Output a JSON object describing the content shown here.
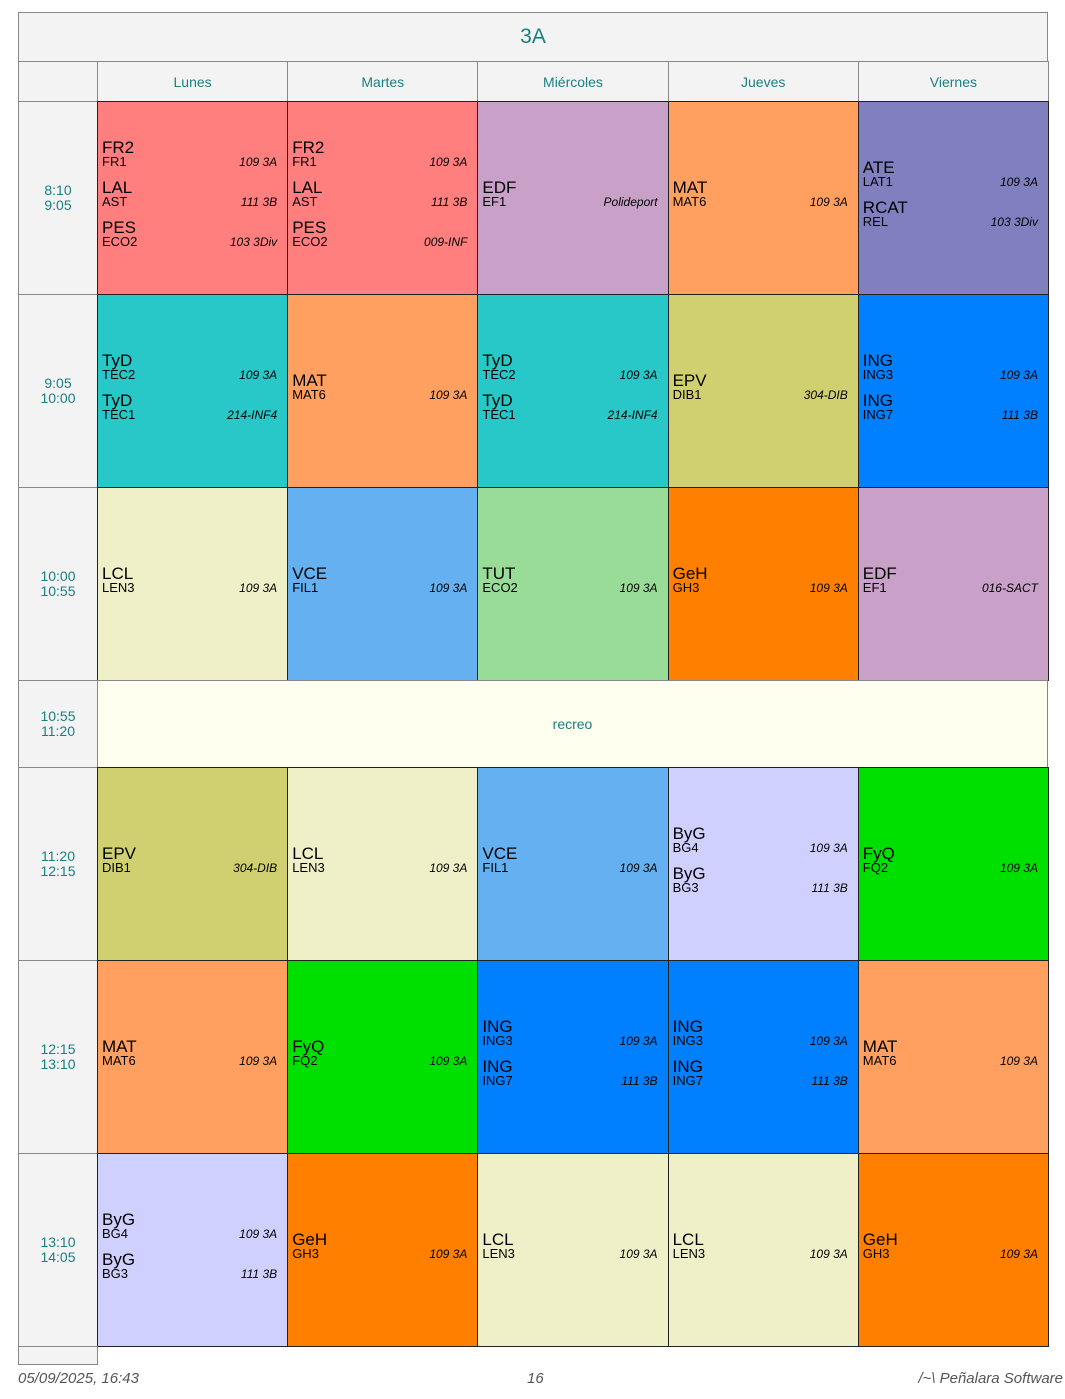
{
  "title": "3A",
  "days": [
    "Lunes",
    "Martes",
    "Miércoles",
    "Jueves",
    "Viernes"
  ],
  "rows": [
    {
      "time": [
        "8:10",
        "9:05"
      ],
      "cells": [
        {
          "color": "#ff7f7f",
          "entries": [
            {
              "subject": "FR2",
              "group": "FR1",
              "room": "109 3A"
            },
            {
              "subject": "LAL",
              "group": "AST",
              "room": "111 3B"
            },
            {
              "subject": "PES",
              "group": "ECO2",
              "room": "103 3Div"
            }
          ]
        },
        {
          "color": "#ff7f7f",
          "entries": [
            {
              "subject": "FR2",
              "group": "FR1",
              "room": "109 3A"
            },
            {
              "subject": "LAL",
              "group": "AST",
              "room": "111 3B"
            },
            {
              "subject": "PES",
              "group": "ECO2",
              "room": "009-INF"
            }
          ]
        },
        {
          "color": "#c8a0c8",
          "entries": [
            {
              "subject": "EDF",
              "group": "EF1",
              "room": "Polideport"
            }
          ]
        },
        {
          "color": "#ffa060",
          "entries": [
            {
              "subject": "MAT",
              "group": "MAT6",
              "room": "109 3A"
            }
          ]
        },
        {
          "color": "#8080c0",
          "entries": [
            {
              "subject": "ATE",
              "group": "LAT1",
              "room": "109 3A"
            },
            {
              "subject": "RCAT",
              "group": "REL",
              "room": "103 3Div"
            }
          ]
        }
      ]
    },
    {
      "time": [
        "9:05",
        "10:00"
      ],
      "cells": [
        {
          "color": "#28c8c8",
          "entries": [
            {
              "subject": "TyD",
              "group": "TEC2",
              "room": "109 3A"
            },
            {
              "subject": "TyD",
              "group": "TEC1",
              "room": "214-INF4"
            }
          ]
        },
        {
          "color": "#ffa060",
          "entries": [
            {
              "subject": "MAT",
              "group": "MAT6",
              "room": "109 3A"
            }
          ]
        },
        {
          "color": "#28c8c8",
          "entries": [
            {
              "subject": "TyD",
              "group": "TEC2",
              "room": "109 3A"
            },
            {
              "subject": "TyD",
              "group": "TEC1",
              "room": "214-INF4"
            }
          ]
        },
        {
          "color": "#d0d070",
          "entries": [
            {
              "subject": "EPV",
              "group": "DIB1",
              "room": "304-DIB"
            }
          ]
        },
        {
          "color": "#0080ff",
          "entries": [
            {
              "subject": "ING",
              "group": "ING3",
              "room": "109 3A"
            },
            {
              "subject": "ING",
              "group": "ING7",
              "room": "111 3B"
            }
          ]
        }
      ]
    },
    {
      "time": [
        "10:00",
        "10:55"
      ],
      "cells": [
        {
          "color": "#f0f0c8",
          "entries": [
            {
              "subject": "LCL",
              "group": "LEN3",
              "room": "109 3A"
            }
          ]
        },
        {
          "color": "#64b0f0",
          "entries": [
            {
              "subject": "VCE",
              "group": "FIL1",
              "room": "109 3A"
            }
          ]
        },
        {
          "color": "#98dc98",
          "entries": [
            {
              "subject": "TUT",
              "group": "ECO2",
              "room": "109 3A"
            }
          ]
        },
        {
          "color": "#ff8000",
          "entries": [
            {
              "subject": "GeH",
              "group": "GH3",
              "room": "109 3A"
            }
          ]
        },
        {
          "color": "#c8a0c8",
          "entries": [
            {
              "subject": "EDF",
              "group": "EF1",
              "room": "016-SACT"
            }
          ]
        }
      ]
    },
    {
      "time": [
        "10:55",
        "11:20"
      ],
      "label": "recreo"
    },
    {
      "time": [
        "11:20",
        "12:15"
      ],
      "cells": [
        {
          "color": "#d0d070",
          "entries": [
            {
              "subject": "EPV",
              "group": "DIB1",
              "room": "304-DIB"
            }
          ]
        },
        {
          "color": "#f0f0c8",
          "entries": [
            {
              "subject": "LCL",
              "group": "LEN3",
              "room": "109 3A"
            }
          ]
        },
        {
          "color": "#64b0f0",
          "entries": [
            {
              "subject": "VCE",
              "group": "FIL1",
              "room": "109 3A"
            }
          ]
        },
        {
          "color": "#d0d0ff",
          "entries": [
            {
              "subject": "ByG",
              "group": "BG4",
              "room": "109 3A"
            },
            {
              "subject": "ByG",
              "group": "BG3",
              "room": "111 3B"
            }
          ]
        },
        {
          "color": "#00e000",
          "entries": [
            {
              "subject": "FyQ",
              "group": "FQ2",
              "room": "109 3A"
            }
          ]
        }
      ]
    },
    {
      "time": [
        "12:15",
        "13:10"
      ],
      "cells": [
        {
          "color": "#ffa060",
          "entries": [
            {
              "subject": "MAT",
              "group": "MAT6",
              "room": "109 3A"
            }
          ]
        },
        {
          "color": "#00e000",
          "entries": [
            {
              "subject": "FyQ",
              "group": "FQ2",
              "room": "109 3A"
            }
          ]
        },
        {
          "color": "#0080ff",
          "entries": [
            {
              "subject": "ING",
              "group": "ING3",
              "room": "109 3A"
            },
            {
              "subject": "ING",
              "group": "ING7",
              "room": "111 3B"
            }
          ]
        },
        {
          "color": "#0080ff",
          "entries": [
            {
              "subject": "ING",
              "group": "ING3",
              "room": "109 3A"
            },
            {
              "subject": "ING",
              "group": "ING7",
              "room": "111 3B"
            }
          ]
        },
        {
          "color": "#ffa060",
          "entries": [
            {
              "subject": "MAT",
              "group": "MAT6",
              "room": "109 3A"
            }
          ]
        }
      ]
    },
    {
      "time": [
        "13:10",
        "14:05"
      ],
      "cells": [
        {
          "color": "#d0d0ff",
          "entries": [
            {
              "subject": "ByG",
              "group": "BG4",
              "room": "109 3A"
            },
            {
              "subject": "ByG",
              "group": "BG3",
              "room": "111 3B"
            }
          ]
        },
        {
          "color": "#ff8000",
          "entries": [
            {
              "subject": "GeH",
              "group": "GH3",
              "room": "109 3A"
            }
          ]
        },
        {
          "color": "#f0f0c8",
          "entries": [
            {
              "subject": "LCL",
              "group": "LEN3",
              "room": "109 3A"
            }
          ]
        },
        {
          "color": "#f0f0c8",
          "entries": [
            {
              "subject": "LCL",
              "group": "LEN3",
              "room": "109 3A"
            }
          ]
        },
        {
          "color": "#ff8000",
          "entries": [
            {
              "subject": "GeH",
              "group": "GH3",
              "room": "109 3A"
            }
          ]
        }
      ]
    }
  ],
  "footer": {
    "date": "05/09/2025, 16:43",
    "page": "16",
    "software": "/~\\ Peñalara Software"
  }
}
